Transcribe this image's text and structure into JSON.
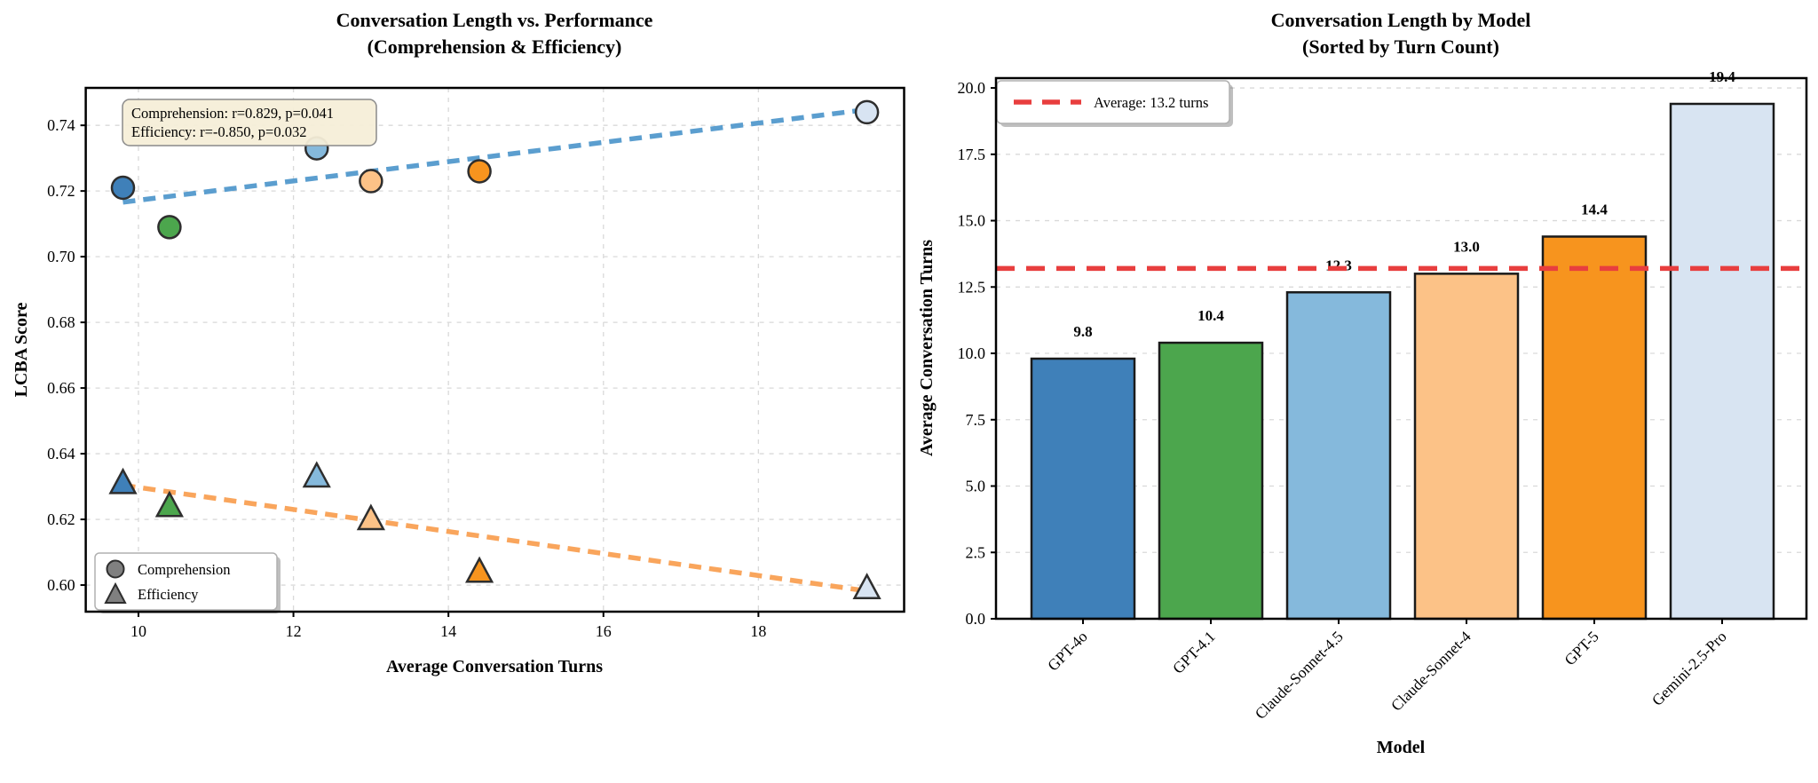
{
  "figure": {
    "background": "#ffffff"
  },
  "chart_data": [
    {
      "type": "scatter",
      "title_lines": [
        "Conversation Length vs. Performance",
        "(Comprehension & Efficiency)"
      ],
      "xlabel": "Average Conversation Turns",
      "ylabel": "LCBA Score",
      "xlim": [
        9.32,
        19.88
      ],
      "ylim": [
        0.5919,
        0.7514
      ],
      "xticks": [
        10,
        12,
        14,
        16,
        18
      ],
      "xtick_labels": [
        "10",
        "12",
        "14",
        "16",
        "18"
      ],
      "yticks": [
        0.6,
        0.62,
        0.64,
        0.66,
        0.68,
        0.7,
        0.72,
        0.74
      ],
      "ytick_labels": [
        "0.60",
        "0.62",
        "0.64",
        "0.66",
        "0.68",
        "0.70",
        "0.72",
        "0.74"
      ],
      "grid": true,
      "models": [
        "GPT-4o",
        "GPT-4.1",
        "Claude-Sonnet-4.5",
        "Claude-Sonnet-4",
        "GPT-5",
        "Gemini-2.5-Pro"
      ],
      "point_colors": [
        "#3f80b9",
        "#4ca64d",
        "#85b9dc",
        "#fcc287",
        "#f7941e",
        "#d8e4f2"
      ],
      "point_edge_color": "#2e2e2e",
      "x": [
        9.8,
        10.4,
        12.3,
        13.0,
        14.4,
        19.4
      ],
      "series": [
        {
          "name": "Comprehension",
          "marker": "circle",
          "y": [
            0.721,
            0.709,
            0.733,
            0.723,
            0.726,
            0.744
          ],
          "trend": {
            "x1": 9.8,
            "y1": 0.7166,
            "x2": 19.4,
            "y2": 0.7448,
            "color": "#5b9ecf"
          }
        },
        {
          "name": "Efficiency",
          "marker": "triangle",
          "y": [
            0.631,
            0.624,
            0.633,
            0.62,
            0.604,
            0.599
          ],
          "trend": {
            "x1": 9.8,
            "y1": 0.6304,
            "x2": 19.4,
            "y2": 0.5982,
            "color": "#f9a55c"
          }
        }
      ],
      "annotation_lines": [
        "Comprehension: r=0.829, p=0.041",
        "Efficiency: r=-0.850, p=0.032"
      ],
      "annotation_bg": "#f6eed8",
      "legend": {
        "position": "lower left",
        "marker_color": "#808080",
        "items": [
          {
            "label": "Comprehension",
            "marker": "circle"
          },
          {
            "label": "Efficiency",
            "marker": "triangle"
          }
        ]
      }
    },
    {
      "type": "bar",
      "title_lines": [
        "Conversation Length by Model",
        "(Sorted by Turn Count)"
      ],
      "xlabel": "Model",
      "ylabel": "Average Conversation Turns",
      "categories": [
        "GPT-4o",
        "GPT-4.1",
        "Claude-Sonnet-4.5",
        "Claude-Sonnet-4",
        "GPT-5",
        "Gemini-2.5-Pro"
      ],
      "values": [
        9.8,
        10.4,
        12.3,
        13.0,
        14.4,
        19.4
      ],
      "value_labels": [
        "9.8",
        "10.4",
        "12.3",
        "13.0",
        "14.4",
        "19.4"
      ],
      "bar_colors": [
        "#3f80b9",
        "#4ca64d",
        "#85b9dc",
        "#fcc287",
        "#f7941e",
        "#d8e4f2"
      ],
      "bar_edge_color": "#1a1a1a",
      "ylim": [
        0,
        20.37
      ],
      "yticks": [
        0,
        2.5,
        5,
        7.5,
        10,
        12.5,
        15,
        17.5,
        20
      ],
      "ytick_labels": [
        "0.0",
        "2.5",
        "5.0",
        "7.5",
        "10.0",
        "12.5",
        "15.0",
        "17.5",
        "20.0"
      ],
      "grid": true,
      "average_line": {
        "value": 13.2,
        "color": "#e83e3e",
        "legend_label": "Average: 13.2 turns",
        "position": "upper left"
      }
    }
  ]
}
